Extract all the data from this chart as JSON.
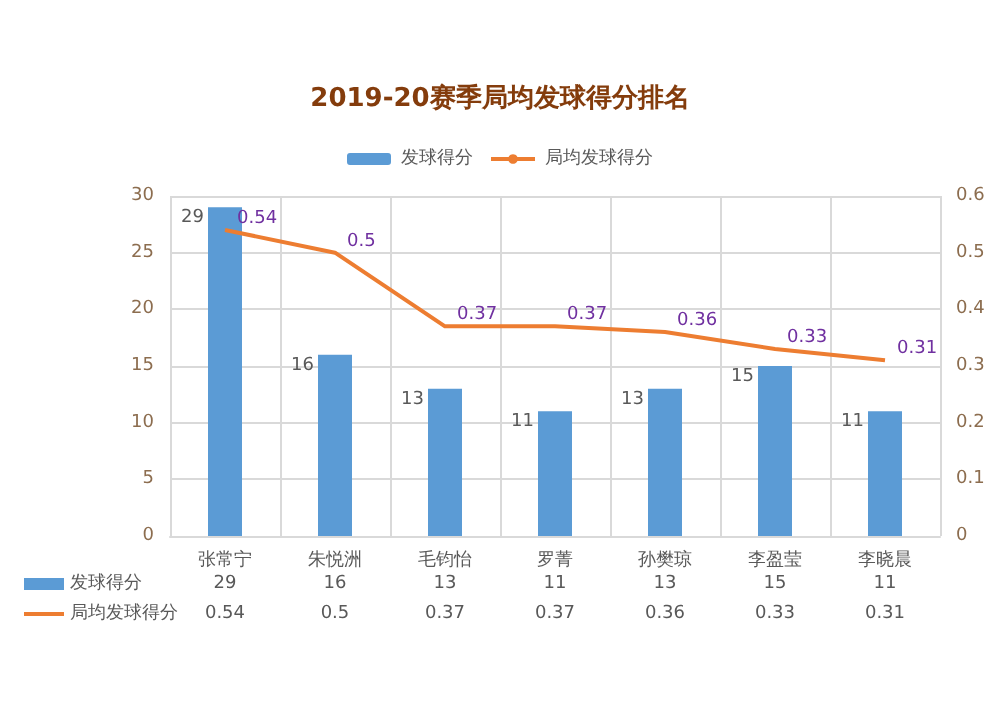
{
  "chart_data": {
    "type": "bar",
    "title": "2019-20赛季局均发球得分排名",
    "categories": [
      "张常宁",
      "朱悦洲",
      "毛钧怡",
      "罗菁",
      "孙樊琼",
      "李盈莹",
      "李晓晨"
    ],
    "series": [
      {
        "name": "发球得分",
        "color": "#5b9bd5",
        "values": [
          29,
          16,
          13,
          11,
          13,
          15,
          11
        ],
        "value_labels": [
          "29",
          "16",
          "13",
          "11",
          "13",
          "15",
          "11"
        ]
      },
      {
        "name": "局均发球得分",
        "type": "line",
        "axis": "y2",
        "color": "#ed7d31",
        "values": [
          0.54,
          0.5,
          0.37,
          0.37,
          0.36,
          0.33,
          0.31
        ],
        "value_labels": [
          "0.54",
          "0.5",
          "0.37",
          "0.37",
          "0.36",
          "0.33",
          "0.31"
        ]
      }
    ],
    "ylim": [
      0,
      30
    ],
    "yticks": [
      0,
      5,
      10,
      15,
      20,
      25,
      30
    ],
    "y2lim": [
      0,
      0.6
    ],
    "y2ticks": [
      0,
      0.1,
      0.2,
      0.3,
      0.4,
      0.5,
      0.6
    ],
    "grid": true,
    "legend": "top",
    "marker": "none"
  }
}
